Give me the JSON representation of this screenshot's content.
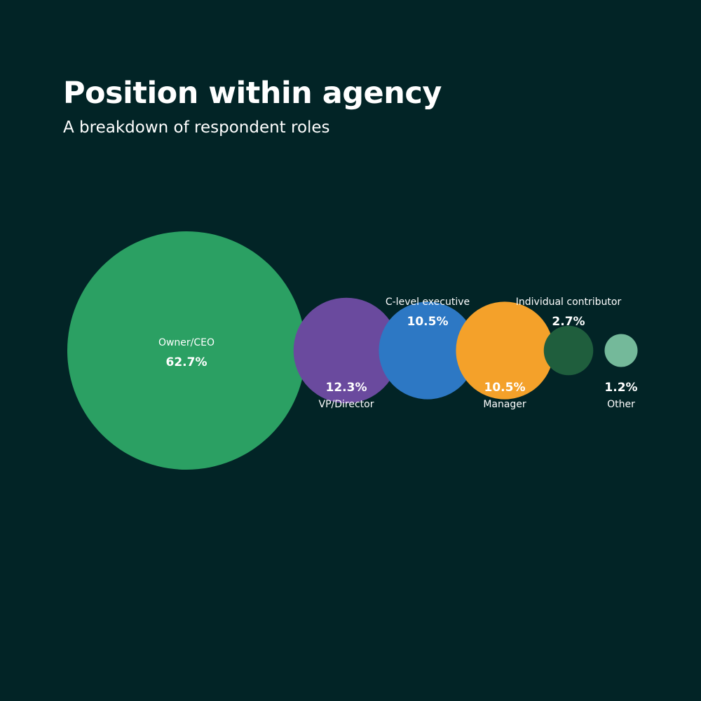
{
  "title": "Position within agency",
  "subtitle": "A breakdown of respondent roles",
  "colors": {
    "background": "#022426",
    "text": "#ffffff"
  },
  "chart_data": {
    "type": "bubble",
    "unit": "%",
    "series": [
      {
        "label": "Owner/CEO",
        "value": 62.7,
        "display": "62.7%",
        "color": "#2ba063",
        "label_position": "inside"
      },
      {
        "label": "VP/Director",
        "value": 12.3,
        "display": "12.3%",
        "color": "#6a4a9e",
        "label_position": "below"
      },
      {
        "label": "C-level executive",
        "value": 10.5,
        "display": "10.5%",
        "color": "#2d78c4",
        "label_position": "above"
      },
      {
        "label": "Manager",
        "value": 10.5,
        "display": "10.5%",
        "color": "#f4a12a",
        "label_position": "below"
      },
      {
        "label": "Individual contributor",
        "value": 2.7,
        "display": "2.7%",
        "color": "#1f5e3d",
        "label_position": "above"
      },
      {
        "label": "Other",
        "value": 1.2,
        "display": "1.2%",
        "color": "#74b99a",
        "label_position": "below"
      }
    ]
  }
}
